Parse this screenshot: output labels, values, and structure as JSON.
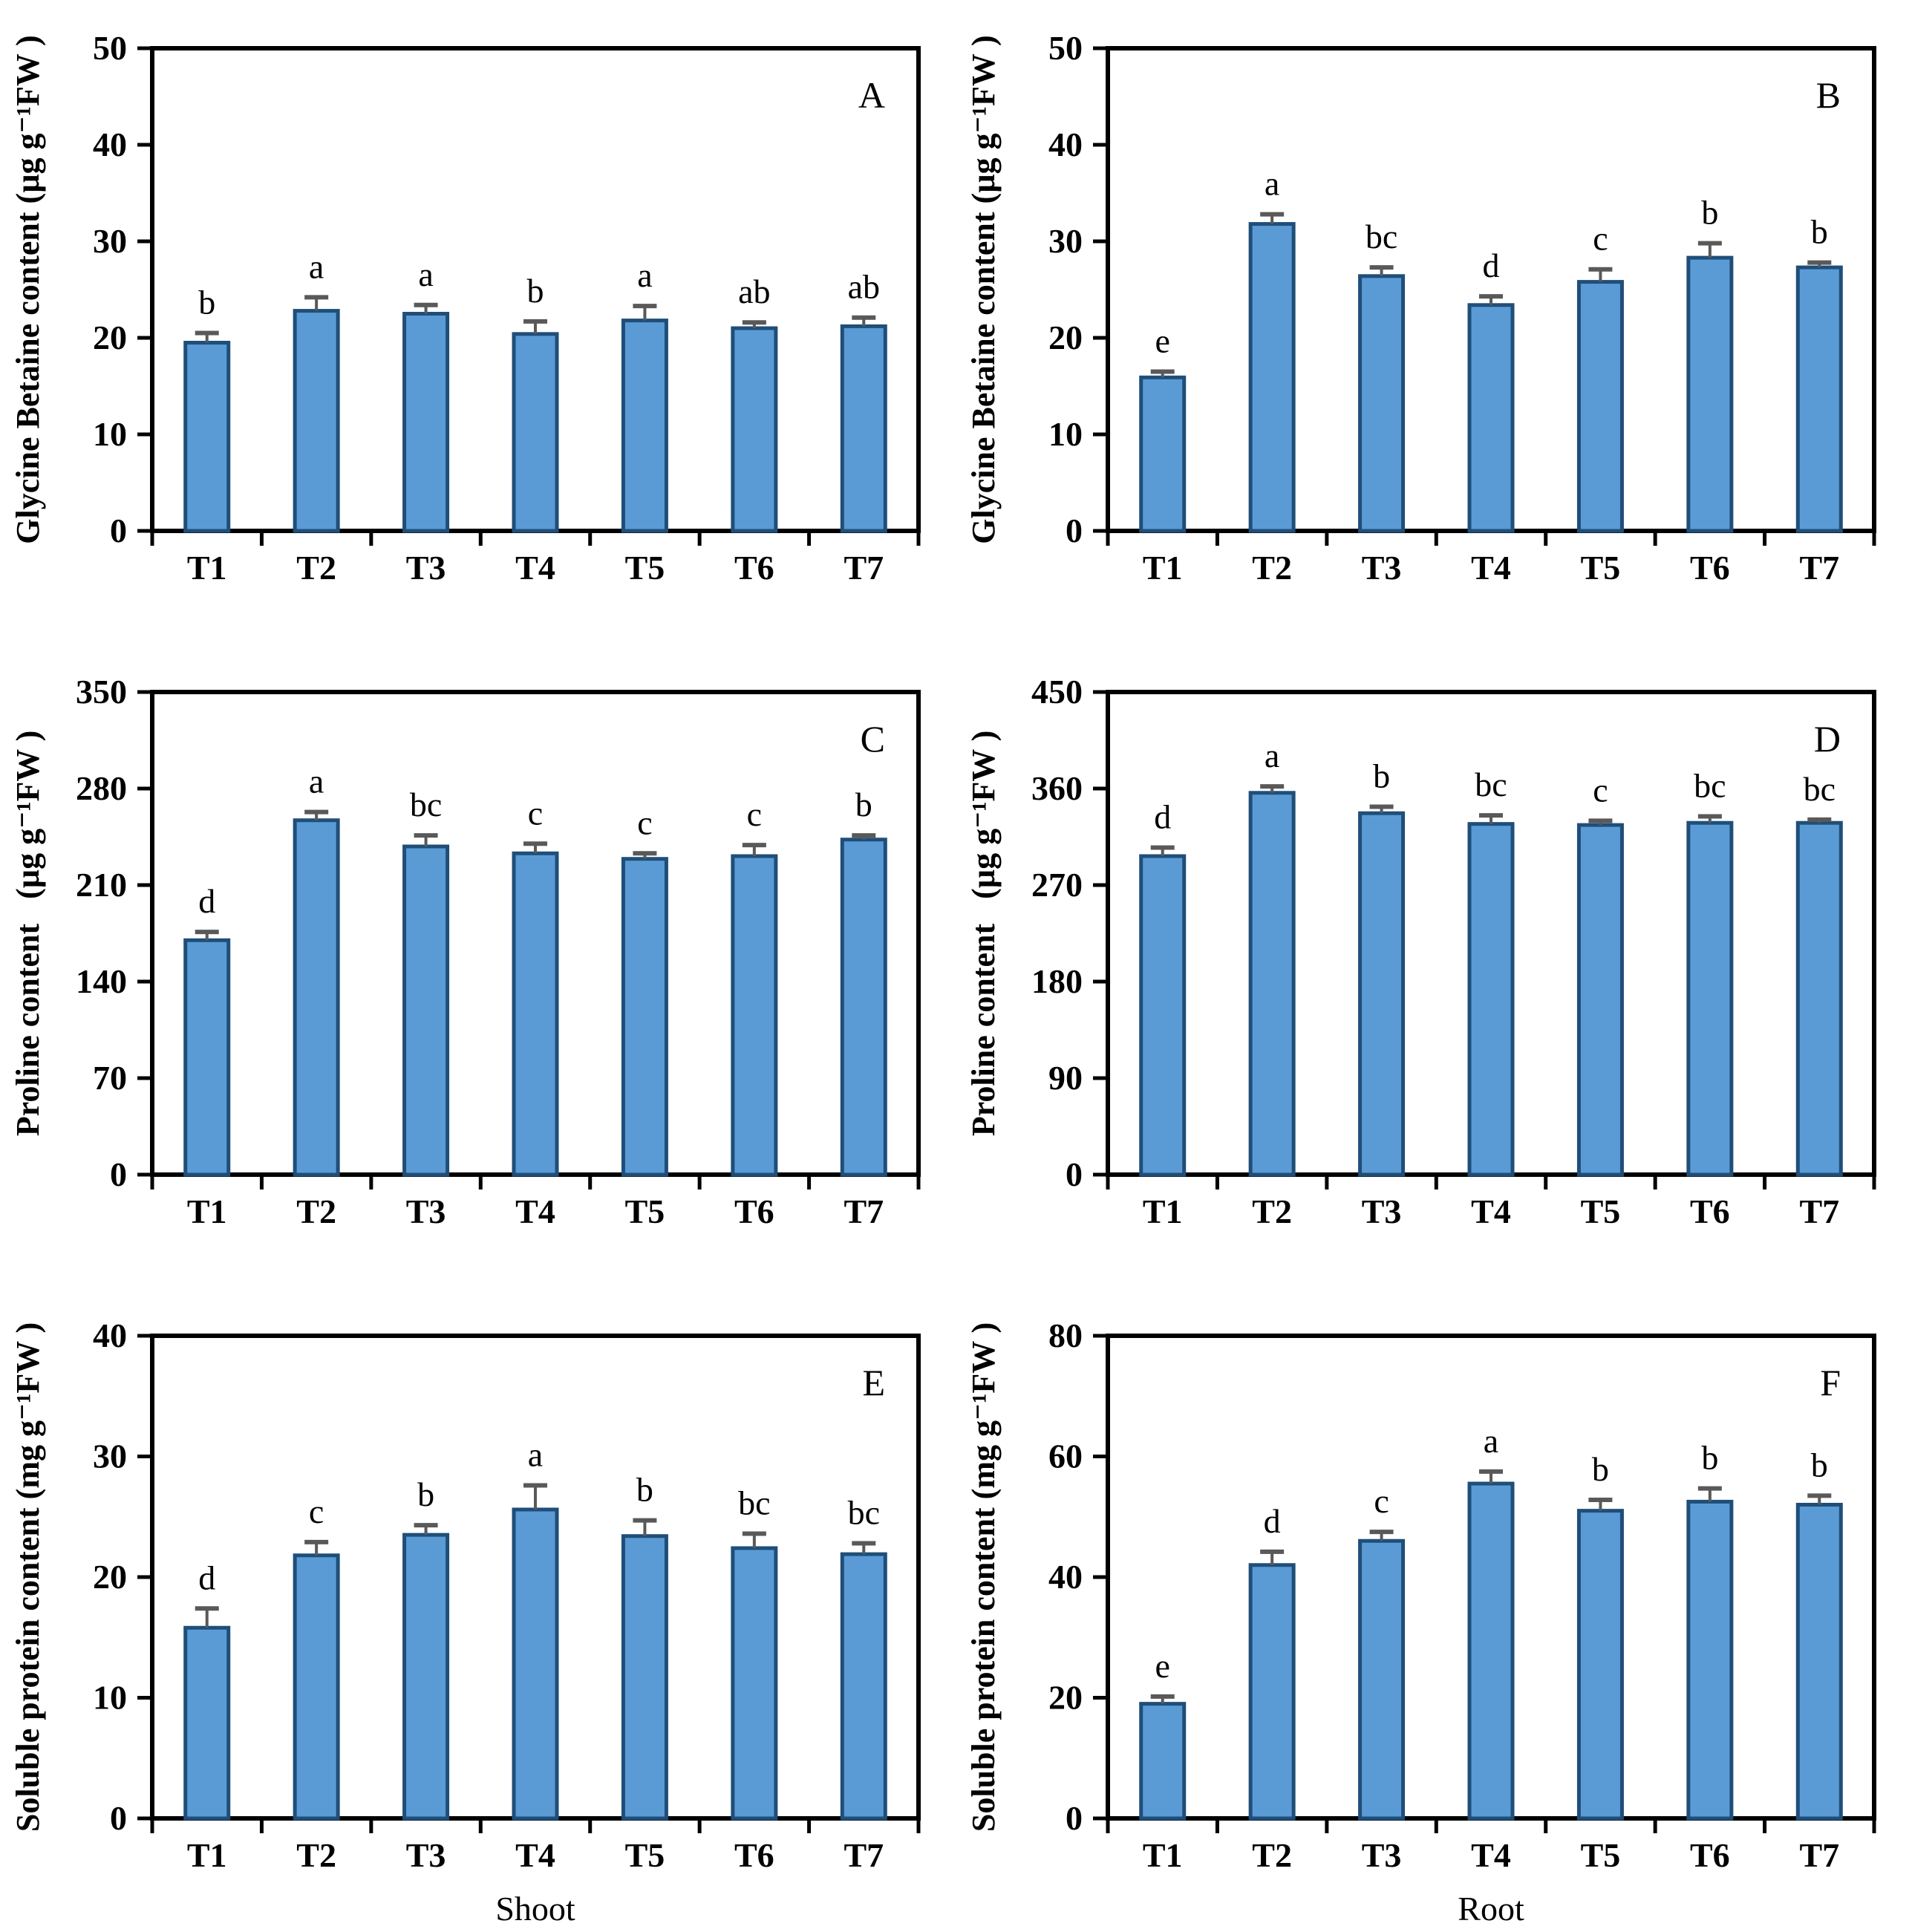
{
  "figure": {
    "bar_fill": "#5B9BD5",
    "bar_stroke": "#1F4E79",
    "error_color": "#595959",
    "axis_color": "#000000",
    "text_color": "#000000",
    "categories": [
      "T1",
      "T2",
      "T3",
      "T4",
      "T5",
      "T6",
      "T7"
    ],
    "group_labels": {
      "left": "Shoot",
      "right": "Root"
    }
  },
  "chart_data": [
    {
      "type": "bar",
      "panel_letter": "A",
      "group": "Shoot",
      "ylabel": "Glycine Betaine content (µg g⁻¹FW )",
      "categories": [
        "T1",
        "T2",
        "T3",
        "T4",
        "T5",
        "T6",
        "T7"
      ],
      "values": [
        19.5,
        22.8,
        22.5,
        20.4,
        21.8,
        21.0,
        21.2
      ],
      "errors": [
        1.0,
        1.4,
        0.9,
        1.3,
        1.5,
        0.6,
        0.9
      ],
      "letters": [
        "b",
        "a",
        "a",
        "b",
        "a",
        "ab",
        "ab"
      ],
      "ylim": [
        0,
        50
      ],
      "yticks": [
        0,
        10,
        20,
        30,
        40,
        50
      ],
      "xlabel": ""
    },
    {
      "type": "bar",
      "panel_letter": "B",
      "group": "Root",
      "ylabel": "Glycine Betaine content (µg g⁻¹FW )",
      "categories": [
        "T1",
        "T2",
        "T3",
        "T4",
        "T5",
        "T6",
        "T7"
      ],
      "values": [
        15.9,
        31.8,
        26.4,
        23.4,
        25.8,
        28.3,
        27.3
      ],
      "errors": [
        0.6,
        1.0,
        0.9,
        0.9,
        1.3,
        1.5,
        0.5
      ],
      "letters": [
        "e",
        "a",
        "bc",
        "d",
        "c",
        "b",
        "b"
      ],
      "ylim": [
        0,
        50
      ],
      "yticks": [
        0,
        10,
        20,
        30,
        40,
        50
      ],
      "xlabel": ""
    },
    {
      "type": "bar",
      "panel_letter": "C",
      "group": "Shoot",
      "ylabel": "Proline content  (µg g⁻¹FW )",
      "categories": [
        "T1",
        "T2",
        "T3",
        "T4",
        "T5",
        "T6",
        "T7"
      ],
      "values": [
        170,
        257,
        238,
        233,
        229,
        231,
        243
      ],
      "errors": [
        6,
        6,
        8,
        7,
        4,
        8,
        3
      ],
      "letters": [
        "d",
        "a",
        "bc",
        "c",
        "c",
        "c",
        "b"
      ],
      "ylim": [
        0,
        350
      ],
      "yticks": [
        0,
        70,
        140,
        210,
        280,
        350
      ],
      "xlabel": ""
    },
    {
      "type": "bar",
      "panel_letter": "D",
      "group": "Root",
      "ylabel": "Proline content  (µg g⁻¹FW )",
      "categories": [
        "T1",
        "T2",
        "T3",
        "T4",
        "T5",
        "T6",
        "T7"
      ],
      "values": [
        297,
        356,
        337,
        327,
        326,
        328,
        328
      ],
      "errors": [
        8,
        6,
        6,
        8,
        4,
        6,
        3
      ],
      "letters": [
        "d",
        "a",
        "b",
        "bc",
        "c",
        "bc",
        "bc"
      ],
      "ylim": [
        0,
        450
      ],
      "yticks": [
        0,
        90,
        180,
        270,
        360,
        450
      ],
      "xlabel": ""
    },
    {
      "type": "bar",
      "panel_letter": "E",
      "group": "Shoot",
      "ylabel": "Soluble protein content (mg g⁻¹FW )",
      "categories": [
        "T1",
        "T2",
        "T3",
        "T4",
        "T5",
        "T6",
        "T7"
      ],
      "values": [
        15.8,
        21.8,
        23.5,
        25.6,
        23.4,
        22.4,
        21.9
      ],
      "errors": [
        1.6,
        1.1,
        0.8,
        2.0,
        1.3,
        1.2,
        0.9
      ],
      "letters": [
        "d",
        "c",
        "b",
        "a",
        "b",
        "bc",
        "bc"
      ],
      "ylim": [
        0,
        40
      ],
      "yticks": [
        0,
        10,
        20,
        30,
        40
      ],
      "xlabel": "Shoot"
    },
    {
      "type": "bar",
      "panel_letter": "F",
      "group": "Root",
      "ylabel": "Soluble protein content (mg g⁻¹FW )",
      "categories": [
        "T1",
        "T2",
        "T3",
        "T4",
        "T5",
        "T6",
        "T7"
      ],
      "values": [
        19.0,
        42.0,
        46.0,
        55.5,
        51.0,
        52.5,
        52.0
      ],
      "errors": [
        1.2,
        2.2,
        1.5,
        2.0,
        1.8,
        2.2,
        1.5
      ],
      "letters": [
        "e",
        "d",
        "c",
        "a",
        "b",
        "b",
        "b"
      ],
      "ylim": [
        0,
        80
      ],
      "yticks": [
        0,
        20,
        40,
        60,
        80
      ],
      "xlabel": "Root"
    }
  ]
}
